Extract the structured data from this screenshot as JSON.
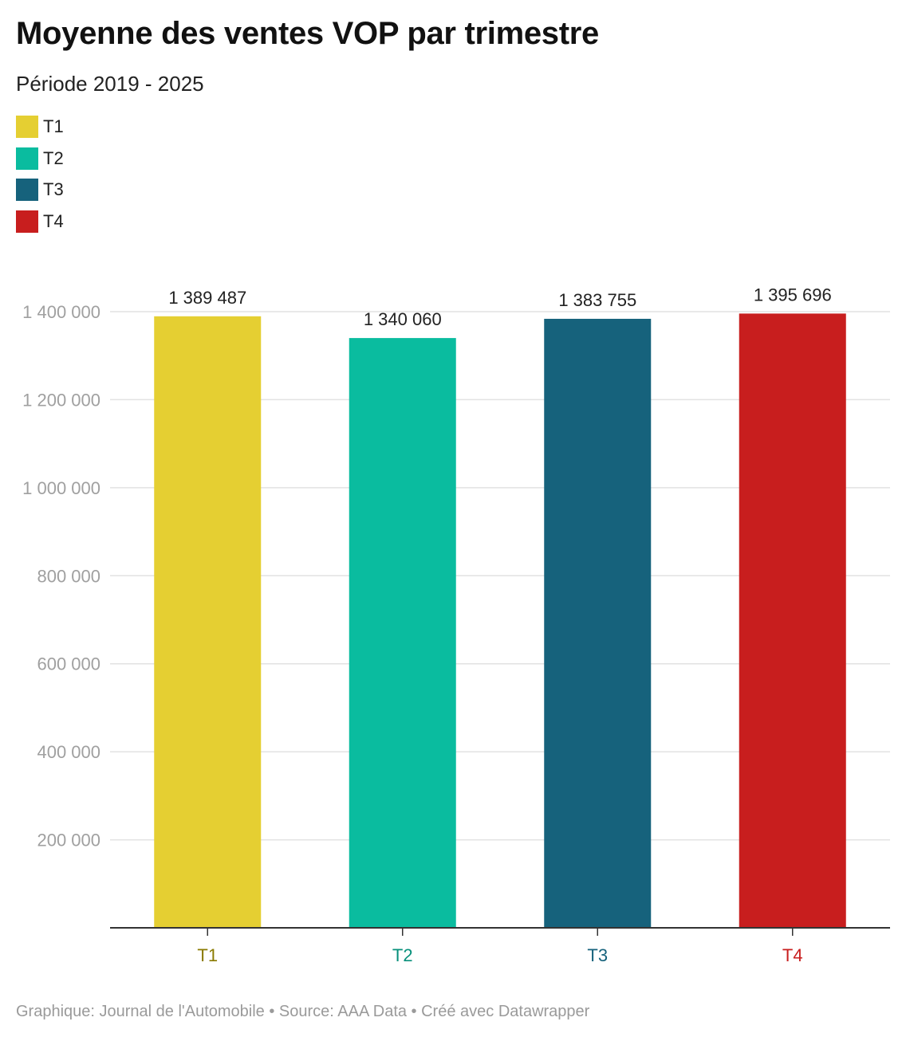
{
  "title": "Moyenne des ventes VOP par trimestre",
  "subtitle": "Période 2019 - 2025",
  "footer": "Graphique: Journal de l'Automobile • Source: AAA Data • Créé avec Datawrapper",
  "chart_data": {
    "type": "bar",
    "categories": [
      "T1",
      "T2",
      "T3",
      "T4"
    ],
    "values": [
      1389487,
      1340060,
      1383755,
      1395696
    ],
    "value_labels": [
      "1 389 487",
      "1 340 060",
      "1 383 755",
      "1 395 696"
    ],
    "colors": [
      "#e5cf32",
      "#0abc9f",
      "#16627c",
      "#c81e1e"
    ],
    "tick_label_colors": [
      "#8a7a00",
      "#07907b",
      "#16627c",
      "#c81e1e"
    ],
    "legend": [
      {
        "label": "T1",
        "color": "#e5cf32"
      },
      {
        "label": "T2",
        "color": "#0abc9f"
      },
      {
        "label": "T3",
        "color": "#16627c"
      },
      {
        "label": "T4",
        "color": "#c81e1e"
      }
    ],
    "legend_position": "top-left",
    "y_ticks": [
      200000,
      400000,
      600000,
      800000,
      1000000,
      1200000,
      1400000
    ],
    "y_tick_labels": [
      "200 000",
      "400 000",
      "600 000",
      "800 000",
      "1 000 000",
      "1 200 000",
      "1 400 000"
    ],
    "ylim": [
      0,
      1400000
    ],
    "grid": true
  }
}
